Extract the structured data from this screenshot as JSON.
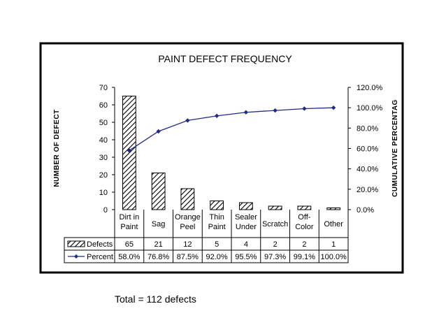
{
  "chart_data": {
    "type": "bar",
    "title": "PAINT DEFECT FREQUENCY",
    "ylabel": "NUMBER OF DEFECT",
    "y2label": "CUMULATIVE PERCENTAG",
    "categories": [
      [
        "Dirt in",
        "Paint"
      ],
      [
        "Sag"
      ],
      [
        "Orange",
        "Peel"
      ],
      [
        "Thin",
        "Paint"
      ],
      [
        "Sealer",
        "Under"
      ],
      [
        "Scratch"
      ],
      [
        "Off-",
        "Color"
      ],
      [
        "Other"
      ]
    ],
    "series": [
      {
        "name": "Defects",
        "kind": "bar",
        "pattern": "diagonal-hatch",
        "values": [
          65,
          21,
          12,
          5,
          4,
          2,
          2,
          1
        ],
        "labels": [
          "65",
          "21",
          "12",
          "5",
          "4",
          "2",
          "2",
          "1"
        ]
      },
      {
        "name": "Percent",
        "kind": "line",
        "axis": "right",
        "color": "#1f2a8a",
        "values": [
          58.0,
          76.8,
          87.5,
          92.0,
          95.5,
          97.3,
          99.1,
          100.0
        ],
        "labels": [
          "58.0%",
          "76.8%",
          "87.5%",
          "92.0%",
          "95.5%",
          "97.3%",
          "99.1%",
          "100.0%"
        ]
      }
    ],
    "ylim": [
      0,
      70
    ],
    "yticks": [
      "0",
      "10",
      "20",
      "30",
      "40",
      "50",
      "60",
      "70"
    ],
    "y2lim": [
      0,
      120
    ],
    "y2ticks": [
      "0.0%",
      "20.0%",
      "40.0%",
      "60.0%",
      "80.0%",
      "100.0%",
      "120.0%"
    ],
    "grid": false,
    "legend": "data-table-below"
  },
  "note": {
    "text": "Total = 112 defects"
  }
}
